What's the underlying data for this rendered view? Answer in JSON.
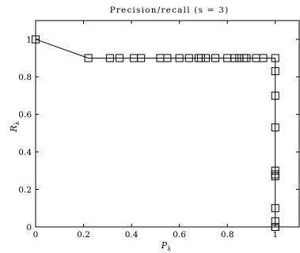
{
  "chart_data": {
    "type": "line",
    "title": "Precision/recall (s = 3)",
    "xlabel": "P_λ",
    "ylabel": "R_λ",
    "xlim": [
      0,
      1.1
    ],
    "ylim": [
      0,
      1.1
    ],
    "xticks": [
      0,
      0.2,
      0.4,
      0.6,
      0.8,
      1
    ],
    "yticks": [
      0,
      0.2,
      0.4,
      0.6,
      0.8,
      1
    ],
    "xtick_labels": [
      "0",
      "0.2",
      "0.4",
      "0.6",
      "0.8",
      "1"
    ],
    "ytick_labels": [
      "0",
      "0.2",
      "0.4",
      "0.6",
      "0.8",
      "1"
    ],
    "grid": false,
    "marker": "square",
    "series": [
      {
        "x": [
          0.0,
          0.22,
          0.31,
          0.35,
          0.41,
          0.44,
          0.52,
          0.55,
          0.6,
          0.64,
          0.68,
          0.69,
          0.71,
          0.75,
          0.8,
          0.83,
          0.85,
          0.87,
          0.88,
          0.92,
          0.95,
          1.0,
          1.0,
          1.0,
          1.0,
          1.0,
          1.0,
          1.0,
          1.0,
          1.0,
          1.0,
          1.0
        ],
        "y": [
          1.0,
          0.9,
          0.9,
          0.9,
          0.9,
          0.9,
          0.9,
          0.9,
          0.9,
          0.9,
          0.9,
          0.9,
          0.9,
          0.9,
          0.9,
          0.9,
          0.9,
          0.9,
          0.9,
          0.9,
          0.9,
          0.9,
          0.83,
          0.7,
          0.53,
          0.3,
          0.28,
          0.27,
          0.1,
          0.03,
          0.0,
          0.0
        ]
      }
    ]
  }
}
